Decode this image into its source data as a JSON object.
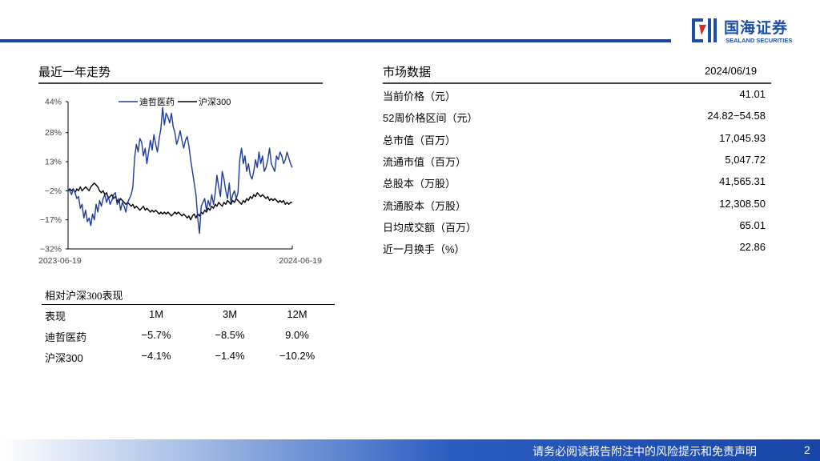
{
  "header": {
    "logo_cn": "国海证券",
    "logo_en": "SEALAND SECURITIES",
    "brand_color": "#1e4fa8"
  },
  "trend": {
    "title": "最近一年走势"
  },
  "chart_data": {
    "type": "line",
    "yticks": [
      "44%",
      "28%",
      "13%",
      "-2%",
      "-17%",
      "-32%"
    ],
    "ylim": [
      -32,
      44
    ],
    "xlabels": [
      "2023-06-19",
      "2024-06-19"
    ],
    "legend_placement": "top",
    "series": [
      {
        "name": "迪哲医药",
        "color": "#1f3b96",
        "values": [
          -1,
          -2,
          -4,
          -1,
          -3,
          -6,
          -5,
          -11,
          -9,
          -16,
          -12,
          -18,
          -16,
          -20,
          -14,
          -17,
          -9,
          -13,
          -7,
          -10,
          -6,
          -4,
          -8,
          -5,
          -9,
          -7,
          -4,
          -3,
          -9,
          -6,
          -12,
          -8,
          -10,
          -13,
          -8,
          -6,
          -4,
          0,
          15,
          22,
          18,
          25,
          23,
          16,
          20,
          12,
          18,
          24,
          19,
          27,
          22,
          18,
          25,
          30,
          41,
          32,
          38,
          36,
          33,
          38,
          31,
          28,
          22,
          25,
          29,
          24,
          20,
          24,
          26,
          21,
          14,
          8,
          2,
          -4,
          -16,
          -24,
          -10,
          -8,
          -6,
          -12,
          -7,
          -10,
          -4,
          -9,
          -3,
          6,
          0,
          -5,
          8,
          4,
          -2,
          -6,
          2,
          -8,
          -4,
          -2,
          -6,
          -3,
          14,
          20,
          12,
          16,
          8,
          12,
          6,
          4,
          8,
          14,
          10,
          18,
          12,
          16,
          8,
          10,
          14,
          20,
          12,
          10,
          8,
          16,
          14,
          18,
          16,
          12,
          14,
          18,
          15,
          12,
          10
        ]
      },
      {
        "name": "沪深300",
        "color": "#000000",
        "values": [
          -2,
          -1,
          -2,
          -1,
          -3,
          -1,
          -2,
          0,
          -2,
          -1,
          0,
          -1,
          -2,
          0,
          1,
          2,
          1,
          0,
          -2,
          -3,
          -2,
          -4,
          -3,
          -6,
          -5,
          -4,
          -6,
          -5,
          -7,
          -8,
          -6,
          -7,
          -8,
          -9,
          -8,
          -9,
          -10,
          -9,
          -11,
          -10,
          -11,
          -12,
          -11,
          -10,
          -12,
          -11,
          -12,
          -13,
          -12,
          -13,
          -12,
          -13,
          -14,
          -13,
          -14,
          -13,
          -14,
          -13,
          -14,
          -15,
          -14,
          -13,
          -14,
          -13,
          -14,
          -15,
          -14,
          -15,
          -16,
          -15,
          -17,
          -15,
          -14,
          -16,
          -14,
          -15,
          -13,
          -14,
          -12,
          -13,
          -11,
          -12,
          -10,
          -11,
          -9,
          -10,
          -8,
          -9,
          -10,
          -8,
          -9,
          -7,
          -8,
          -9,
          -7,
          -8,
          -6,
          -7,
          -8,
          -9,
          -7,
          -8,
          -6,
          -7,
          -5,
          -6,
          -4,
          -5,
          -3,
          -4,
          -5,
          -4,
          -5,
          -6,
          -5,
          -7,
          -6,
          -7,
          -6,
          -7,
          -8,
          -7,
          -8,
          -7,
          -9,
          -8,
          -9,
          -8,
          -8
        ]
      }
    ]
  },
  "market": {
    "title": "市场数据",
    "date": "2024/06/19",
    "rows": [
      {
        "label": "当前价格（元）",
        "value": "41.01"
      },
      {
        "label": "52周价格区间（元）",
        "value": "24.82−54.58"
      },
      {
        "label": "总市值（百万）",
        "value": "17,045.93"
      },
      {
        "label": "流通市值（百万）",
        "value": "5,047.72"
      },
      {
        "label": "总股本（万股）",
        "value": "41,565.31"
      },
      {
        "label": "流通股本（万股）",
        "value": "12,308.50"
      },
      {
        "label": "日均成交额（百万）",
        "value": "65.01"
      },
      {
        "label": "近一月换手（%）",
        "value": "22.86"
      }
    ]
  },
  "relative": {
    "title": "相对沪深300表现",
    "header": [
      "表现",
      "1M",
      "3M",
      "12M"
    ],
    "rows": [
      [
        "迪哲医药",
        "−5.7%",
        "−8.5%",
        "9.0%"
      ],
      [
        "沪深300",
        "−4.1%",
        "−1.4%",
        "−10.2%"
      ]
    ]
  },
  "footer": {
    "text": "请务必阅读报告附注中的风险提示和免责声明",
    "page": "2"
  }
}
